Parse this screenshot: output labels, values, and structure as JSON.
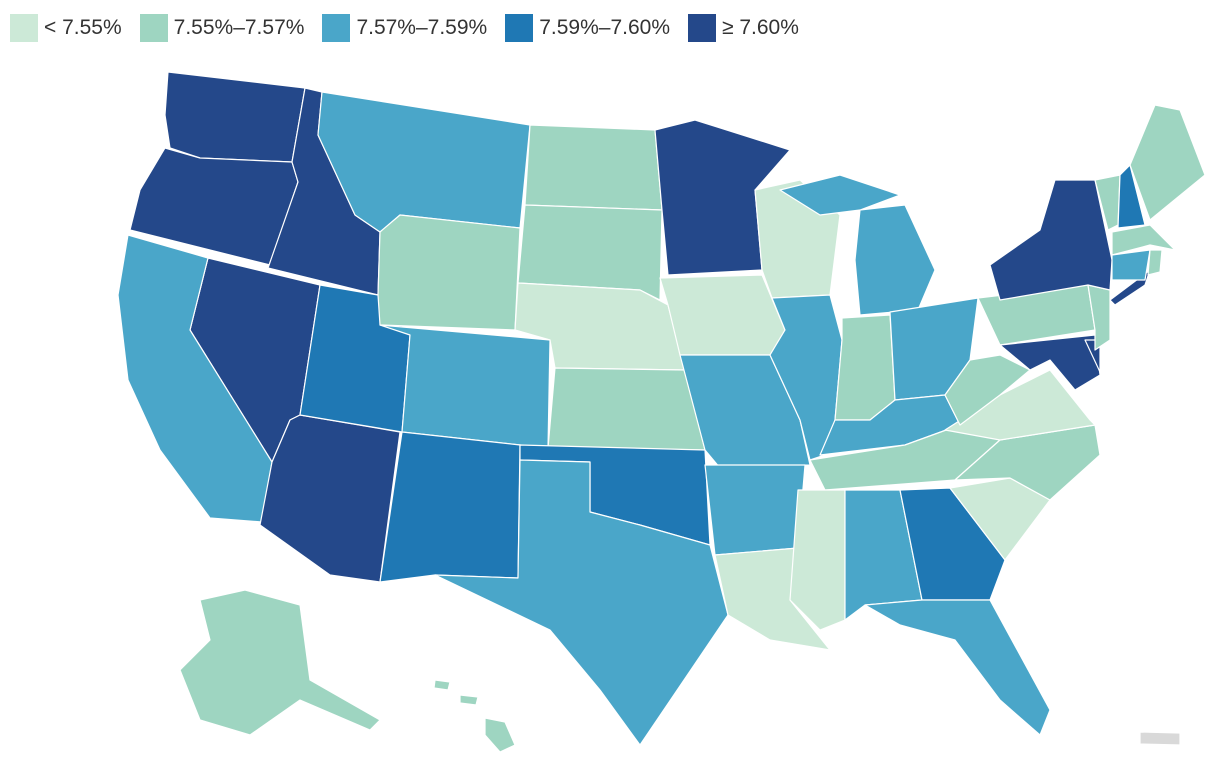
{
  "legend": [
    {
      "label": "< 7.55%",
      "color": "#cce9d7"
    },
    {
      "label": "7.55%–7.57%",
      "color": "#9ed5c1"
    },
    {
      "label": "7.57%–7.59%",
      "color": "#4aa6c9"
    },
    {
      "label": "7.59%–7.60%",
      "color": "#1f78b4"
    },
    {
      "label": "≥ 7.60%",
      "color": "#24488a"
    }
  ],
  "no_data_color": "#d9d9d9",
  "states": {
    "WA": 4,
    "OR": 4,
    "ID": 4,
    "NV": 4,
    "AZ": 4,
    "MN": 4,
    "NY": 4,
    "MD": 4,
    "DE": 4,
    "CA": 2,
    "MT": 2,
    "CO": 2,
    "TX": 2,
    "MO": 2,
    "AR": 2,
    "IL": 2,
    "MI": 2,
    "OH": 2,
    "KY": 2,
    "AL": 2,
    "FL": 2,
    "CT": 2,
    "UT": 3,
    "NM": 3,
    "OK": 3,
    "GA": 3,
    "NH": 3,
    "WY": 1,
    "ND": 1,
    "SD": 1,
    "KS": 1,
    "IN": 1,
    "WV": 1,
    "TN": 1,
    "NC": 1,
    "PA": 1,
    "NJ": 1,
    "VT": 1,
    "ME": 1,
    "MA": 1,
    "RI": 1,
    "AK": 1,
    "HI": 1,
    "NE": 0,
    "IA": 0,
    "WI": 0,
    "VA": 0,
    "SC": 0,
    "MS": 0,
    "LA": 0,
    "DC": 0,
    "PR": -1
  }
}
